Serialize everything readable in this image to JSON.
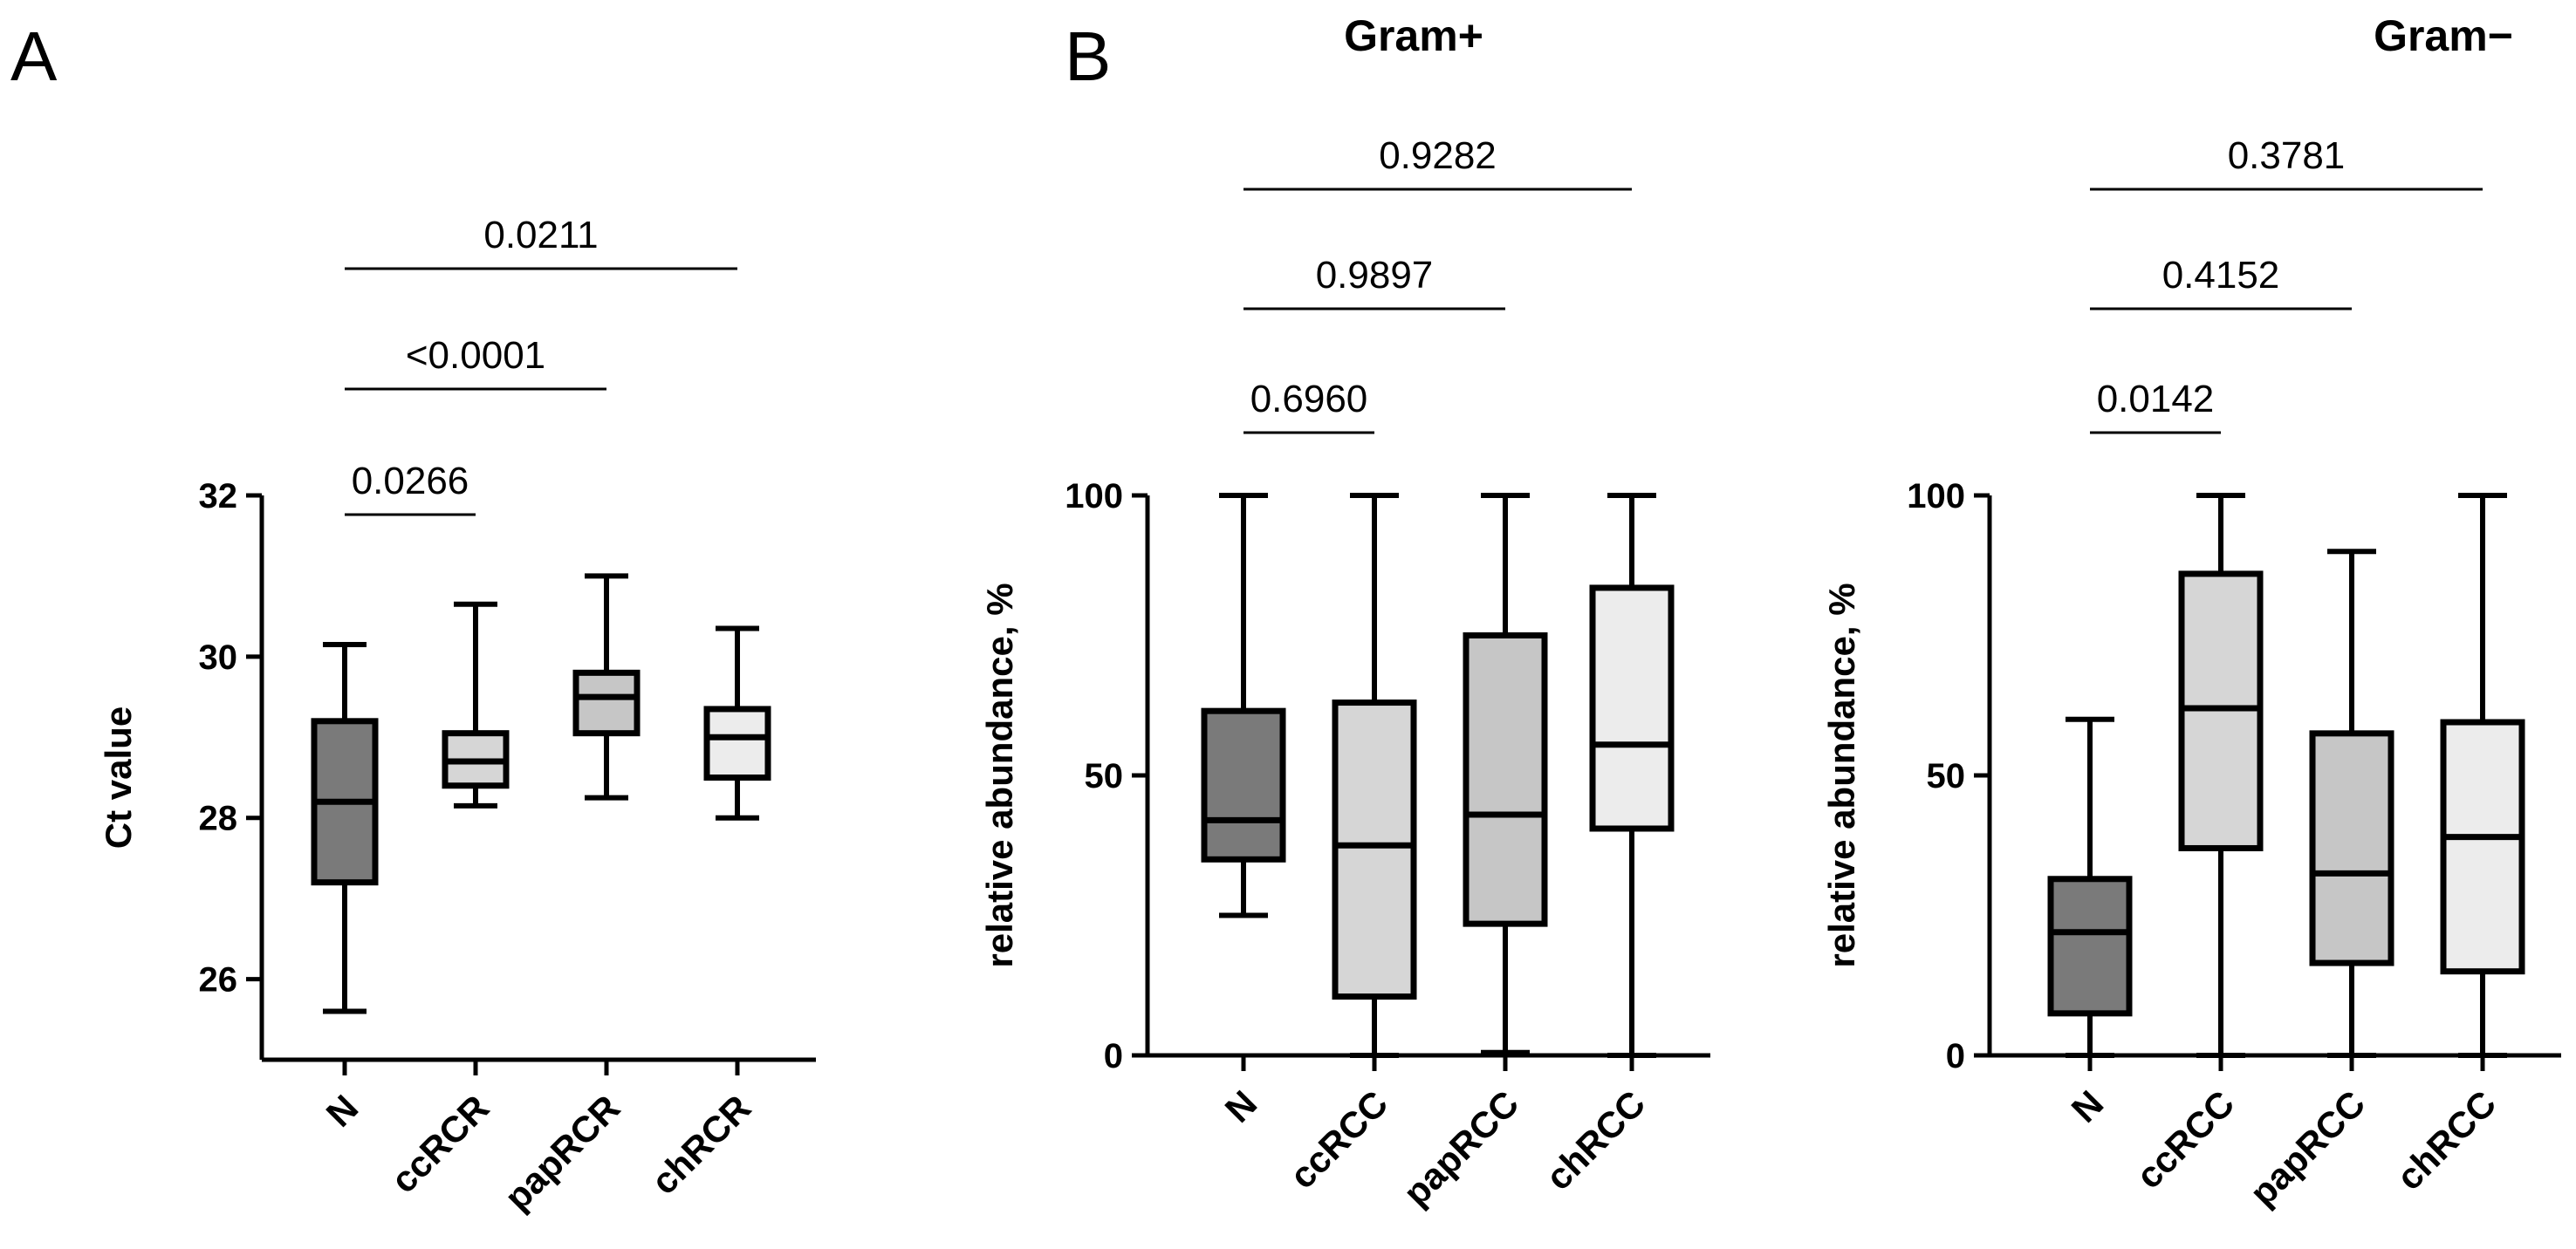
{
  "panel_labels": {
    "a": "A",
    "b": "B"
  },
  "colors": {
    "N": "#7a7a7a",
    "cc": "#d6d6d6",
    "pap": "#c6c6c6",
    "ch": "#ececec"
  },
  "chart_data": [
    {
      "type": "box",
      "id": "A",
      "title": "",
      "ylabel": "Ct value",
      "ylim": [
        25,
        32
      ],
      "yticks": [
        26,
        28,
        30,
        32
      ],
      "categories": [
        "N",
        "ccRCR",
        "papRCR",
        "chRCR"
      ],
      "boxes": [
        {
          "min": 25.6,
          "q1": 27.2,
          "median": 28.2,
          "q3": 29.2,
          "max": 30.15
        },
        {
          "min": 28.15,
          "q1": 28.4,
          "median": 28.7,
          "q3": 29.05,
          "max": 30.65
        },
        {
          "min": 28.25,
          "q1": 29.05,
          "median": 29.5,
          "q3": 29.8,
          "max": 31.0
        },
        {
          "min": 28.0,
          "q1": 28.5,
          "median": 29.0,
          "q3": 29.35,
          "max": 30.35
        }
      ],
      "comparisons": [
        {
          "from": 0,
          "to": 1,
          "label": "0.0266"
        },
        {
          "from": 0,
          "to": 2,
          "label": "<0.0001"
        },
        {
          "from": 0,
          "to": 3,
          "label": "0.0211"
        }
      ]
    },
    {
      "type": "box",
      "id": "B-gram-pos",
      "title": "Gram+",
      "ylabel": "relative abundance, %",
      "ylim": [
        0,
        100
      ],
      "yticks": [
        0,
        50,
        100
      ],
      "categories": [
        "N",
        "ccRCC",
        "papRCC",
        "chRCC"
      ],
      "boxes": [
        {
          "min": 25,
          "q1": 35,
          "median": 42,
          "q3": 61.5,
          "max": 100
        },
        {
          "min": 0,
          "q1": 10.5,
          "median": 37.5,
          "q3": 63,
          "max": 100
        },
        {
          "min": 0.5,
          "q1": 23.5,
          "median": 43,
          "q3": 75,
          "max": 100
        },
        {
          "min": 0,
          "q1": 40.5,
          "median": 55.5,
          "q3": 83.5,
          "max": 100
        }
      ],
      "comparisons": [
        {
          "from": 0,
          "to": 1,
          "label": "0.6960"
        },
        {
          "from": 0,
          "to": 2,
          "label": "0.9897"
        },
        {
          "from": 0,
          "to": 3,
          "label": "0.9282"
        }
      ]
    },
    {
      "type": "box",
      "id": "B-gram-neg",
      "title": "Gram−",
      "ylabel": "relative abundance, %",
      "ylim": [
        0,
        100
      ],
      "yticks": [
        0,
        50,
        100
      ],
      "categories": [
        "N",
        "ccRCC",
        "papRCC",
        "chRCC"
      ],
      "boxes": [
        {
          "min": 0,
          "q1": 7.5,
          "median": 22,
          "q3": 31.5,
          "max": 60
        },
        {
          "min": 0,
          "q1": 37,
          "median": 62,
          "q3": 86,
          "max": 100
        },
        {
          "min": 0,
          "q1": 16.5,
          "median": 32.5,
          "q3": 57.5,
          "max": 90
        },
        {
          "min": 0,
          "q1": 15,
          "median": 39,
          "q3": 59.5,
          "max": 100
        }
      ],
      "comparisons": [
        {
          "from": 0,
          "to": 1,
          "label": "0.0142"
        },
        {
          "from": 0,
          "to": 2,
          "label": "0.4152"
        },
        {
          "from": 0,
          "to": 3,
          "label": "0.3781"
        }
      ]
    }
  ]
}
